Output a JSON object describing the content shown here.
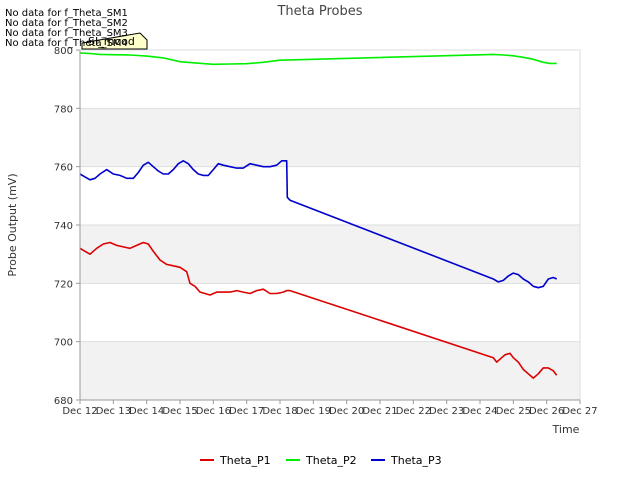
{
  "chart_data": {
    "type": "line",
    "title": "Theta Probes",
    "xlabel": "Time",
    "ylabel": "Probe Output (mV)",
    "ylim": [
      680,
      800
    ],
    "yticks": [
      680,
      700,
      720,
      740,
      760,
      780,
      800
    ],
    "xlim": [
      12,
      27
    ],
    "xticks": [
      12,
      13,
      14,
      15,
      16,
      17,
      18,
      19,
      20,
      21,
      22,
      23,
      24,
      25,
      26,
      27
    ],
    "xtick_labels": [
      "Dec 12",
      "Dec 13",
      "Dec 14",
      "Dec 15",
      "Dec 16",
      "Dec 17",
      "Dec 18",
      "Dec 19",
      "Dec 20",
      "Dec 21",
      "Dec 22",
      "Dec 23",
      "Dec 24",
      "Dec 25",
      "Dec 26",
      "Dec 27"
    ],
    "no_data_messages": [
      "No data for f_Theta_SM1",
      "No data for f_Theta_SM2",
      "No data for f_Theta_SM3",
      "No data for f_Theta_SM4"
    ],
    "tooltip_label": "SI_mood",
    "legend_position": "bottom-center",
    "colors": {
      "band": "#f2f2f2",
      "grid": "#dddddd",
      "axis": "#999999",
      "tick_text": "#333333",
      "title": "#444444"
    },
    "series": [
      {
        "name": "Theta_P1",
        "color": "#dd0000",
        "x": [
          12.0,
          12.15,
          12.3,
          12.5,
          12.7,
          12.9,
          13.1,
          13.3,
          13.5,
          13.7,
          13.9,
          14.05,
          14.2,
          14.4,
          14.6,
          14.8,
          15.0,
          15.2,
          15.3,
          15.45,
          15.6,
          15.75,
          15.9,
          16.1,
          16.3,
          16.5,
          16.7,
          16.9,
          17.1,
          17.3,
          17.5,
          17.7,
          17.9,
          18.1,
          18.2,
          18.3,
          24.4,
          24.5,
          24.6,
          24.75,
          24.9,
          25.0,
          25.15,
          25.3,
          25.45,
          25.6,
          25.75,
          25.9,
          26.05,
          26.2,
          26.3
        ],
        "y": [
          732,
          731,
          730,
          732,
          733.5,
          734,
          733,
          732.5,
          732,
          733,
          734,
          733.5,
          731,
          728,
          726.5,
          726,
          725.5,
          724,
          720,
          719,
          717,
          716.5,
          716,
          717,
          717,
          717,
          717.5,
          717,
          716.5,
          717.5,
          718,
          716.5,
          716.5,
          717,
          717.5,
          717.5,
          694.5,
          693,
          694,
          695.5,
          696,
          694.5,
          693,
          690.5,
          689,
          687.5,
          689,
          691,
          691,
          690,
          688.5
        ]
      },
      {
        "name": "Theta_P2",
        "color": "#00ee00",
        "x": [
          12.0,
          12.3,
          12.6,
          13.0,
          13.5,
          14.0,
          14.5,
          15.0,
          15.5,
          16.0,
          16.5,
          17.0,
          17.5,
          18.0,
          18.3,
          24.4,
          24.7,
          25.0,
          25.3,
          25.6,
          25.9,
          26.1,
          26.3
        ],
        "y": [
          799,
          798.8,
          798.5,
          798.4,
          798.3,
          797.9,
          797.3,
          796,
          795.5,
          795.1,
          795.2,
          795.3,
          795.8,
          796.5,
          796.6,
          798.5,
          798.3,
          798,
          797.5,
          796.8,
          795.8,
          795.4,
          795.4
        ]
      },
      {
        "name": "Theta_P3",
        "color": "#0000cc",
        "x": [
          12.0,
          12.15,
          12.3,
          12.45,
          12.6,
          12.8,
          13.0,
          13.2,
          13.4,
          13.6,
          13.75,
          13.9,
          14.05,
          14.2,
          14.35,
          14.5,
          14.65,
          14.8,
          14.95,
          15.1,
          15.25,
          15.4,
          15.55,
          15.7,
          15.85,
          16.0,
          16.15,
          16.3,
          16.5,
          16.7,
          16.9,
          17.1,
          17.3,
          17.5,
          17.7,
          17.9,
          18.05,
          18.15,
          18.2,
          18.22,
          18.3,
          24.4,
          24.55,
          24.7,
          24.85,
          25.0,
          25.15,
          25.3,
          25.45,
          25.6,
          25.75,
          25.9,
          26.05,
          26.2,
          26.3
        ],
        "y": [
          757.5,
          756.5,
          755.5,
          756,
          757.5,
          759,
          757.5,
          757,
          756,
          756,
          758,
          760.5,
          761.5,
          760,
          758.5,
          757.5,
          757.5,
          759,
          761,
          762,
          761,
          759,
          757.5,
          757,
          757,
          759,
          761,
          760.5,
          760,
          759.5,
          759.5,
          761,
          760.5,
          760,
          760,
          760.5,
          762,
          762,
          762,
          749.5,
          748.5,
          721.5,
          720.5,
          721,
          722.5,
          723.5,
          723,
          721.5,
          720.5,
          719,
          718.5,
          719,
          721.5,
          722,
          721.5
        ]
      }
    ]
  }
}
